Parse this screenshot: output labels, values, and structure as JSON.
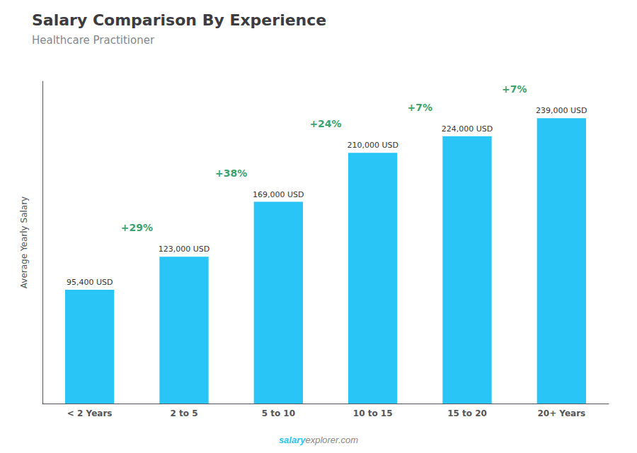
{
  "chart_data": {
    "type": "bar",
    "title": "Salary Comparison By Experience",
    "subtitle": "Healthcare Practitioner",
    "ylabel": "Average Yearly Salary",
    "categories": [
      "< 2 Years",
      "2 to 5",
      "5 to 10",
      "10 to 15",
      "15 to 20",
      "20+ Years"
    ],
    "values": [
      95400,
      123000,
      169000,
      210000,
      224000,
      239000
    ],
    "value_labels": [
      "95,400 USD",
      "123,000 USD",
      "169,000 USD",
      "210,000 USD",
      "224,000 USD",
      "239,000 USD"
    ],
    "data_labels": true,
    "color": "#29c5f6",
    "ylim": [
      0,
      270000
    ],
    "tick_labels": "x",
    "grid": false,
    "annotations": [
      "+29%",
      "+38%",
      "+24%",
      "+7%",
      "+7%",
      "salary",
      "explorer.com"
    ]
  }
}
